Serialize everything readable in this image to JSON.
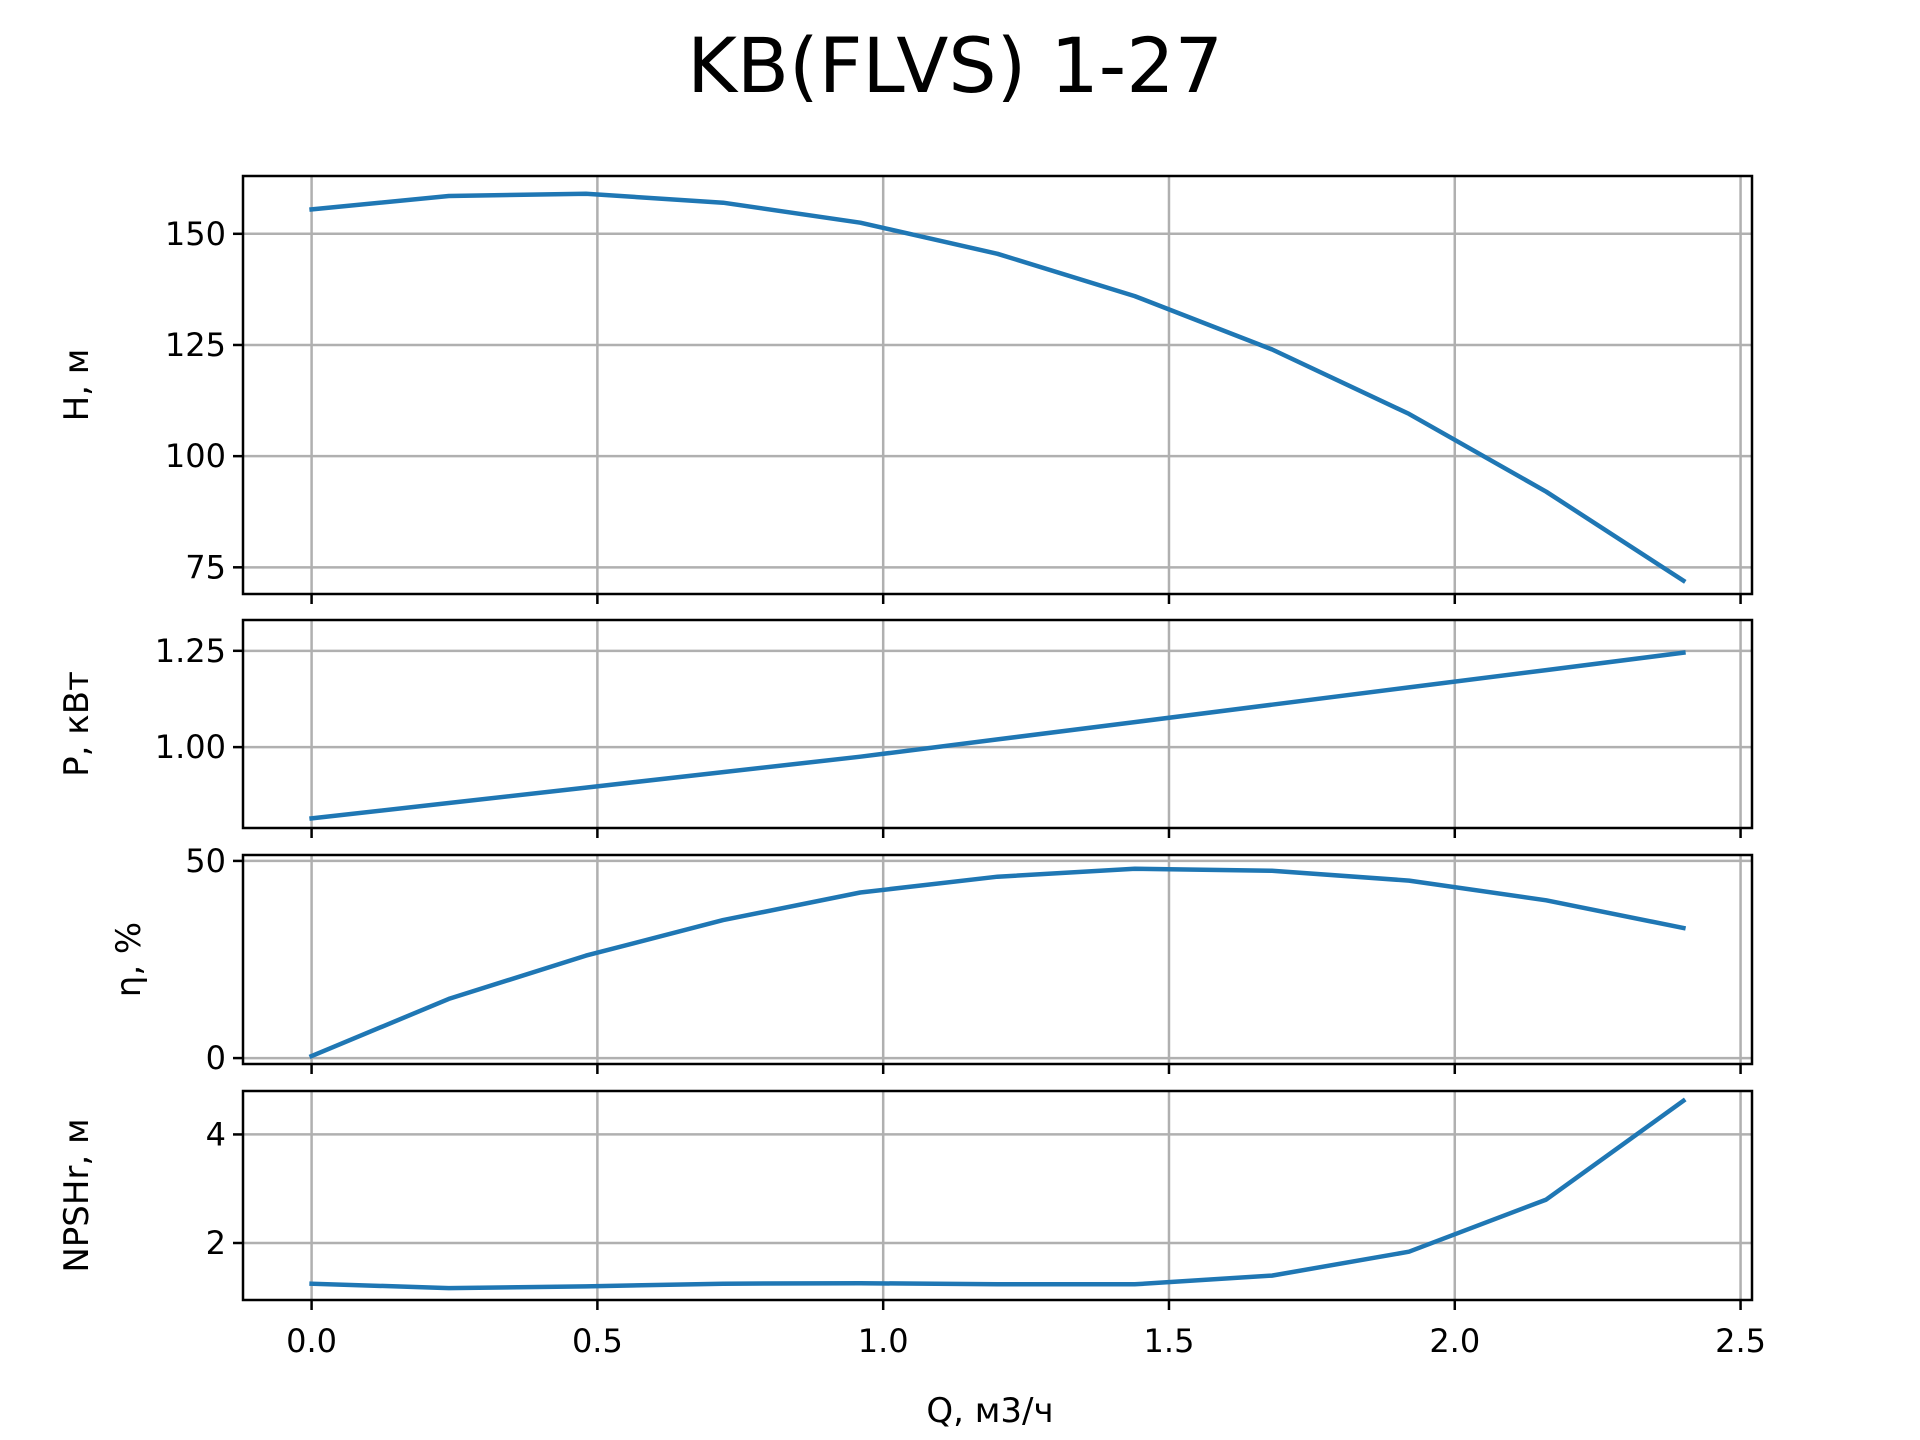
{
  "chart_data": {
    "type": "line",
    "title": "KB(FLVS) 1-27",
    "xlabel": "Q, м3/ч",
    "xlim": [
      -0.12,
      2.52
    ],
    "x_ticks": [
      0.0,
      0.5,
      1.0,
      1.5,
      2.0,
      2.5
    ],
    "x_tick_labels": [
      "0.0",
      "0.5",
      "1.0",
      "1.5",
      "2.0",
      "2.5"
    ],
    "x": [
      0.0,
      0.24,
      0.48,
      0.72,
      0.96,
      1.2,
      1.44,
      1.68,
      1.92,
      2.16,
      2.4
    ],
    "grid": true,
    "line_color": "#1f77b4",
    "panels": [
      {
        "ylabel": "H, м",
        "ylim": [
          69,
          163
        ],
        "y_ticks": [
          75,
          100,
          125,
          150
        ],
        "y_tick_labels": [
          "75",
          "100",
          "125",
          "150"
        ],
        "values": [
          155.5,
          158.5,
          159,
          157,
          152.5,
          145.5,
          136,
          124,
          109.5,
          92,
          72
        ]
      },
      {
        "ylabel": "P, кВт",
        "ylim": [
          0.79,
          1.33
        ],
        "y_ticks": [
          1.0,
          1.25
        ],
        "y_tick_labels": [
          "1.00",
          "1.25"
        ],
        "values": [
          0.815,
          0.855,
          0.895,
          0.935,
          0.975,
          1.02,
          1.065,
          1.11,
          1.155,
          1.2,
          1.245
        ]
      },
      {
        "ylabel": "η, %",
        "ylim": [
          -1.5,
          51.5
        ],
        "y_ticks": [
          0,
          50
        ],
        "y_tick_labels": [
          "0",
          "50"
        ],
        "values": [
          0.5,
          15,
          26,
          35,
          42,
          46,
          48,
          47.5,
          45,
          40,
          33
        ]
      },
      {
        "ylabel": "NPSHr, м",
        "ylim": [
          0.95,
          4.8
        ],
        "y_ticks": [
          2,
          4
        ],
        "y_tick_labels": [
          "2",
          "4"
        ],
        "values": [
          1.25,
          1.17,
          1.2,
          1.25,
          1.26,
          1.24,
          1.24,
          1.4,
          1.84,
          2.8,
          4.62
        ]
      }
    ]
  }
}
